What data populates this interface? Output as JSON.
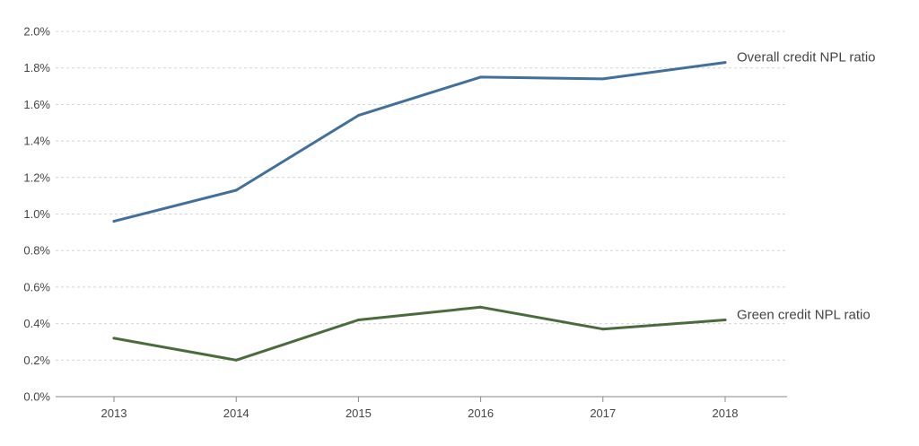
{
  "chart_data": {
    "type": "line",
    "x": [
      "2013",
      "2014",
      "2015",
      "2016",
      "2017",
      "2018"
    ],
    "ylim": [
      0,
      2.0
    ],
    "yticks": [
      0.0,
      0.2,
      0.4,
      0.6,
      0.8,
      1.0,
      1.2,
      1.4,
      1.6,
      1.8,
      2.0
    ],
    "ytick_labels": [
      "0.0%",
      "0.2%",
      "0.4%",
      "0.6%",
      "0.8%",
      "1.0%",
      "1.2%",
      "1.4%",
      "1.6%",
      "1.8%",
      "2.0%"
    ],
    "grid": true,
    "series": [
      {
        "name": "Overall credit NPL ratio",
        "color": "#41709c",
        "values": [
          0.96,
          1.13,
          1.54,
          1.75,
          1.74,
          1.83
        ]
      },
      {
        "name": "Green credit NPL ratio",
        "color": "#4a6b3c",
        "values": [
          0.32,
          0.2,
          0.42,
          0.49,
          0.37,
          0.42
        ]
      }
    ]
  }
}
